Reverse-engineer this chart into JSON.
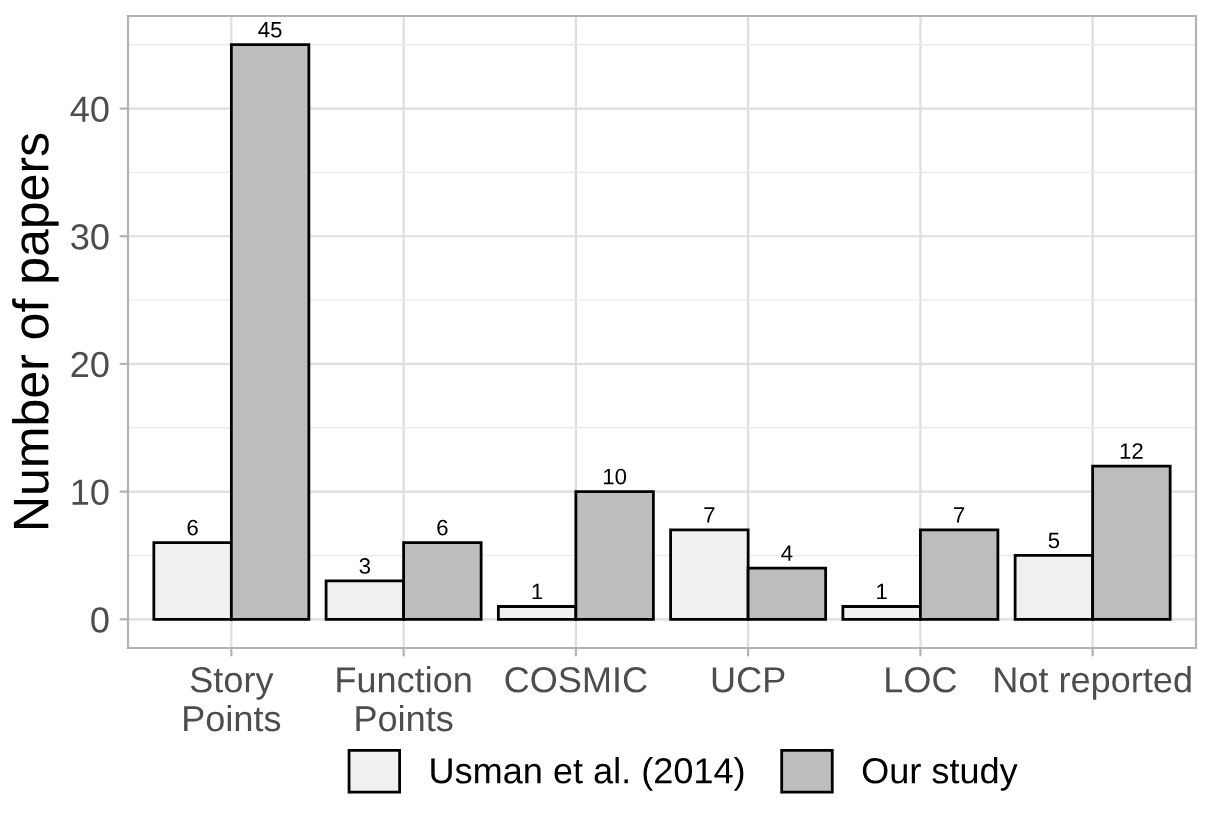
{
  "chart_data": {
    "type": "bar",
    "ylabel": "Number of papers",
    "categories": [
      "Story\nPoints",
      "Function\nPoints",
      "COSMIC",
      "UCP",
      "LOC",
      "Not reported"
    ],
    "series": [
      {
        "name": "Usman et al. (2014)",
        "color": "#f0f0f0",
        "values": [
          6,
          3,
          1,
          7,
          1,
          5
        ]
      },
      {
        "name": "Our study",
        "color": "#bdbdbd",
        "values": [
          45,
          6,
          10,
          4,
          7,
          12
        ]
      }
    ],
    "ylim": [
      -2.25,
      47.25
    ],
    "yticks": [
      0,
      {
        "value": 5,
        "label": null
      },
      10,
      {
        "value": 15,
        "label": null
      },
      20,
      {
        "value": 25,
        "label": null
      },
      30,
      {
        "value": 35,
        "label": null
      },
      40,
      {
        "value": 45,
        "label": null
      }
    ],
    "grid": true,
    "legend": "bottom",
    "data_labels": true
  }
}
